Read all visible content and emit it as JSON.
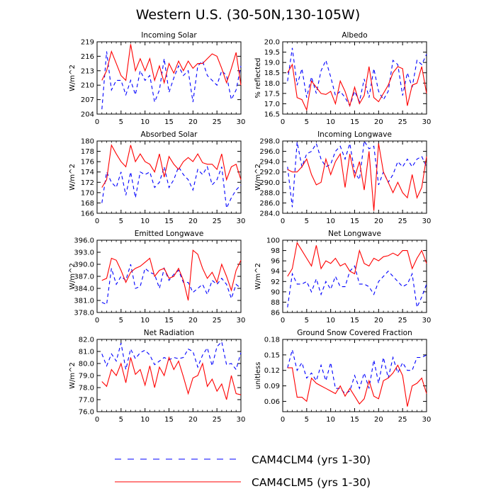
{
  "title": "Western U.S. (30-50N,130-105W)",
  "legend": [
    {
      "label": "CAM4CLM4 (yrs 1-30)",
      "color": "#0000ff",
      "dash": true
    },
    {
      "label": "CAM4CLM5 (yrs 1-30)",
      "color": "#ff0000",
      "dash": false
    }
  ],
  "chart_data": [
    {
      "type": "line",
      "title": "Incoming Solar",
      "ylabel": "W/m^2",
      "ylim": [
        204,
        219
      ],
      "yticks": [
        204,
        207,
        210,
        213,
        216,
        219
      ],
      "xlim": [
        0,
        30
      ],
      "xticks": [
        0,
        5,
        10,
        15,
        20,
        25,
        30
      ],
      "x": [
        1,
        2,
        3,
        4,
        5,
        6,
        7,
        8,
        9,
        10,
        11,
        12,
        13,
        14,
        15,
        16,
        17,
        18,
        19,
        20,
        21,
        22,
        23,
        24,
        25,
        26,
        27,
        28,
        29,
        30
      ],
      "series": [
        {
          "name": "CAM4CLM4 (yrs 1-30)",
          "values": [
            205,
            217,
            209,
            211,
            211,
            208,
            211,
            208,
            213,
            211,
            212,
            206.5,
            209,
            215.5,
            208.5,
            211.5,
            214,
            212,
            213,
            206.5,
            214,
            215,
            212,
            211,
            210,
            213,
            212,
            207,
            209,
            214
          ]
        },
        {
          "name": "CAM4CLM5 (yrs 1-30)",
          "values": [
            211,
            213,
            217,
            214.5,
            212,
            211,
            218.5,
            213,
            215.5,
            213,
            215.5,
            211,
            214,
            210.5,
            214.5,
            212.5,
            215,
            213,
            215,
            213.5,
            214.5,
            214.5,
            215.5,
            216.5,
            216,
            213.5,
            210.5,
            213.5,
            216.8,
            210
          ]
        }
      ]
    },
    {
      "type": "line",
      "title": "Albedo",
      "ylabel": "% reflected",
      "ylim": [
        16.5,
        20.0
      ],
      "yticks": [
        "16.5",
        "17.0",
        "17.5",
        "18.0",
        "18.5",
        "19.0",
        "19.5",
        "20.0"
      ],
      "xlim": [
        0,
        30
      ],
      "xticks": [
        0,
        5,
        10,
        15,
        20,
        25,
        30
      ],
      "x": [
        1,
        2,
        3,
        4,
        5,
        6,
        7,
        8,
        9,
        10,
        11,
        12,
        13,
        14,
        15,
        16,
        17,
        18,
        19,
        20,
        21,
        22,
        23,
        24,
        25,
        26,
        27,
        28,
        29,
        30
      ],
      "series": [
        {
          "name": "CAM4CLM4 (yrs 1-30)",
          "values": [
            18.1,
            19.7,
            17.9,
            18.7,
            17.3,
            18.3,
            17.5,
            18.6,
            19.1,
            18.3,
            17.4,
            17.6,
            17.3,
            16.9,
            17.6,
            17.1,
            18.2,
            17.3,
            18.7,
            17.6,
            17.2,
            17.6,
            19.1,
            18.9,
            17.4,
            18.5,
            17.8,
            19.1,
            18.9,
            19.4
          ]
        },
        {
          "name": "CAM4CLM5 (yrs 1-30)",
          "values": [
            18.5,
            18.9,
            17.3,
            17.2,
            16.7,
            18.1,
            17.8,
            17.5,
            17.45,
            17.6,
            17.0,
            18.1,
            17.6,
            16.9,
            17.8,
            17.0,
            17.4,
            18.8,
            17.3,
            17.1,
            17.5,
            17.9,
            18.5,
            18.8,
            18.7,
            16.9,
            17.9,
            18.0,
            18.8,
            17.5
          ]
        }
      ]
    },
    {
      "type": "line",
      "title": "Absorbed Solar",
      "ylabel": "W/m^2",
      "ylim": [
        166,
        180
      ],
      "yticks": [
        166,
        168,
        170,
        172,
        174,
        176,
        178,
        180
      ],
      "xlim": [
        0,
        30
      ],
      "xticks": [
        0,
        5,
        10,
        15,
        20,
        25,
        30
      ],
      "x": [
        1,
        2,
        3,
        4,
        5,
        6,
        7,
        8,
        9,
        10,
        11,
        12,
        13,
        14,
        15,
        16,
        17,
        18,
        19,
        20,
        21,
        22,
        23,
        24,
        25,
        26,
        27,
        28,
        29,
        30
      ],
      "series": [
        {
          "name": "CAM4CLM4 (yrs 1-30)",
          "values": [
            168,
            174,
            172,
            171,
            174,
            169.5,
            174,
            169,
            174,
            173.5,
            174,
            171,
            172,
            175,
            171,
            172.5,
            175,
            173.5,
            172.5,
            170.5,
            174.5,
            173.5,
            175,
            171.5,
            172.5,
            175,
            167,
            169,
            170.5,
            171.5
          ]
        },
        {
          "name": "CAM4CLM5 (yrs 1-30)",
          "values": [
            171,
            172.5,
            179.2,
            177.5,
            176,
            175,
            179.2,
            176,
            177.5,
            176,
            175.5,
            174,
            177.5,
            173,
            177,
            175.5,
            174.5,
            176,
            176.8,
            176,
            177.5,
            175.8,
            175.5,
            175.5,
            174.5,
            177.5,
            172.5,
            175,
            175.5,
            172.5
          ]
        }
      ]
    },
    {
      "type": "line",
      "title": "Incoming Longwave",
      "ylabel": "W/m^2",
      "ylim": [
        284.0,
        298.0
      ],
      "yticks": [
        "284.0",
        "286.0",
        "288.0",
        "290.0",
        "292.0",
        "294.0",
        "296.0",
        "298.0"
      ],
      "xlim": [
        0,
        30
      ],
      "xticks": [
        0,
        5,
        10,
        15,
        20,
        25,
        30
      ],
      "x": [
        1,
        2,
        3,
        4,
        5,
        6,
        7,
        8,
        9,
        10,
        11,
        12,
        13,
        14,
        15,
        16,
        17,
        18,
        19,
        20,
        21,
        22,
        23,
        24,
        25,
        26,
        27,
        28,
        29,
        30
      ],
      "series": [
        {
          "name": "CAM4CLM4 (yrs 1-30)",
          "values": [
            293,
            285.2,
            297.8,
            293,
            295.5,
            296,
            297.5,
            294.5,
            293,
            293.5,
            296,
            297,
            294.5,
            297.5,
            292,
            290.5,
            298,
            296.5,
            297,
            289.5,
            292,
            290,
            291.5,
            294,
            293,
            294.5,
            293,
            294.5,
            295,
            293
          ]
        },
        {
          "name": "CAM4CLM5 (yrs 1-30)",
          "values": [
            292.5,
            292,
            292,
            293,
            294.5,
            291.5,
            289.5,
            290,
            294.5,
            291.5,
            294,
            295.5,
            289,
            295.5,
            291,
            294,
            288.5,
            296,
            284.5,
            297.5,
            292,
            290,
            288,
            290,
            288,
            287,
            291.5,
            287,
            289,
            295
          ]
        }
      ]
    },
    {
      "type": "line",
      "title": "Emitted Longwave",
      "ylabel": "W/m^2",
      "ylim": [
        378.0,
        396.0
      ],
      "yticks": [
        "378.0",
        "381.0",
        "384.0",
        "387.0",
        "390.0",
        "393.0",
        "396.0"
      ],
      "xlim": [
        0,
        30
      ],
      "xticks": [
        0,
        5,
        10,
        15,
        20,
        25,
        30
      ],
      "x": [
        1,
        2,
        3,
        4,
        5,
        6,
        7,
        8,
        9,
        10,
        11,
        12,
        13,
        14,
        15,
        16,
        17,
        18,
        19,
        20,
        21,
        22,
        23,
        24,
        25,
        26,
        27,
        28,
        29,
        30
      ],
      "series": [
        {
          "name": "CAM4CLM4 (yrs 1-30)",
          "values": [
            380.5,
            380,
            389,
            385,
            387,
            386,
            390,
            384,
            384.5,
            389,
            388,
            387.5,
            384,
            389,
            386,
            387.5,
            388.5,
            385.5,
            385.5,
            383,
            384,
            385,
            382.5,
            386,
            385,
            386.5,
            385,
            381.5,
            385,
            384
          ]
        },
        {
          "name": "CAM4CLM5 (yrs 1-30)",
          "values": [
            386,
            386.5,
            391.5,
            391,
            388.5,
            385.5,
            388,
            389,
            389.5,
            390.5,
            391.5,
            387,
            388.5,
            389,
            386.5,
            387,
            389,
            386,
            381,
            393.5,
            392.5,
            389,
            386.5,
            388,
            385.5,
            390,
            387,
            383.5,
            388.5,
            391
          ]
        }
      ]
    },
    {
      "type": "line",
      "title": "Net Longwave",
      "ylabel": "W/m^2",
      "ylim": [
        86,
        100
      ],
      "yticks": [
        86,
        88,
        90,
        92,
        94,
        96,
        98,
        100
      ],
      "xlim": [
        0,
        30
      ],
      "xticks": [
        0,
        5,
        10,
        15,
        20,
        25,
        30
      ],
      "x": [
        1,
        2,
        3,
        4,
        5,
        6,
        7,
        8,
        9,
        10,
        11,
        12,
        13,
        14,
        15,
        16,
        17,
        18,
        19,
        20,
        21,
        22,
        23,
        24,
        25,
        26,
        27,
        28,
        29,
        30
      ],
      "series": [
        {
          "name": "CAM4CLM4 (yrs 1-30)",
          "values": [
            87,
            93.5,
            91.5,
            91.5,
            92,
            90,
            92.5,
            89.5,
            92,
            90.5,
            93,
            91,
            91,
            94,
            95,
            91.5,
            91.5,
            91,
            89.5,
            92,
            93,
            94,
            93,
            92,
            91,
            91.5,
            93.5,
            87,
            89,
            91.5
          ]
        },
        {
          "name": "CAM4CLM5 (yrs 1-30)",
          "values": [
            93,
            94.5,
            99.5,
            98,
            96.5,
            95,
            99,
            94.5,
            96,
            95.5,
            96.5,
            95,
            95.5,
            94,
            93.5,
            98,
            95.5,
            95,
            96.5,
            96,
            96.8,
            97,
            97.5,
            97,
            98,
            98,
            94.5,
            96.5,
            98,
            95.5
          ]
        }
      ]
    },
    {
      "type": "line",
      "title": "Net Radiation",
      "ylabel": "W/m^2",
      "ylim": [
        76.0,
        82.0
      ],
      "yticks": [
        "76.0",
        "77.0",
        "78.0",
        "79.0",
        "80.0",
        "81.0",
        "82.0"
      ],
      "xlim": [
        0,
        30
      ],
      "xticks": [
        0,
        5,
        10,
        15,
        20,
        25,
        30
      ],
      "x": [
        1,
        2,
        3,
        4,
        5,
        6,
        7,
        8,
        9,
        10,
        11,
        12,
        13,
        14,
        15,
        16,
        17,
        18,
        19,
        20,
        21,
        22,
        23,
        24,
        25,
        26,
        27,
        28,
        29,
        30
      ],
      "series": [
        {
          "name": "CAM4CLM4 (yrs 1-30)",
          "values": [
            80.8,
            79.8,
            80.8,
            80.2,
            81.7,
            79.5,
            81.2,
            80.4,
            80.9,
            81.1,
            80.7,
            79.9,
            80.2,
            80.5,
            80.3,
            80.5,
            80.4,
            80.5,
            81.2,
            81.0,
            79.7,
            80.7,
            81.3,
            79.8,
            81.4,
            81.8,
            79.9,
            80.0,
            79.5,
            80.9
          ]
        },
        {
          "name": "CAM4CLM5 (yrs 1-30)",
          "values": [
            78.5,
            78.1,
            79.5,
            79.0,
            80.0,
            78.4,
            80.5,
            79.1,
            79.5,
            78.2,
            79.8,
            78.0,
            79.7,
            79.0,
            80.5,
            79.5,
            80.2,
            78.9,
            77.5,
            78.8,
            79.0,
            80.0,
            78.1,
            78.7,
            77.7,
            78.3,
            77.0,
            79.0,
            77.5,
            77.4
          ]
        }
      ]
    },
    {
      "type": "line",
      "title": "Ground Snow Covered Fraction",
      "ylabel": "unitless",
      "ylim": [
        0.04,
        0.18
      ],
      "yticks": [
        "0.06",
        "0.09",
        "0.12",
        "0.15",
        "0.18"
      ],
      "xlim": [
        0,
        30
      ],
      "xticks": [
        0,
        5,
        10,
        15,
        20,
        25,
        30
      ],
      "x": [
        1,
        2,
        3,
        4,
        5,
        6,
        7,
        8,
        9,
        10,
        11,
        12,
        13,
        14,
        15,
        16,
        17,
        18,
        19,
        20,
        21,
        22,
        23,
        24,
        25,
        26,
        27,
        28,
        29,
        30
      ],
      "series": [
        {
          "name": "CAM4CLM4 (yrs 1-30)",
          "values": [
            0.125,
            0.16,
            0.12,
            0.135,
            0.105,
            0.115,
            0.1,
            0.13,
            0.1,
            0.135,
            0.085,
            0.085,
            0.075,
            0.08,
            0.11,
            0.085,
            0.115,
            0.085,
            0.14,
            0.095,
            0.145,
            0.105,
            0.145,
            0.115,
            0.135,
            0.12,
            0.12,
            0.145,
            0.145,
            0.15
          ]
        },
        {
          "name": "CAM4CLM5 (yrs 1-30)",
          "values": [
            0.125,
            0.125,
            0.068,
            0.068,
            0.06,
            0.105,
            0.095,
            0.09,
            0.085,
            0.08,
            0.075,
            0.09,
            0.07,
            0.085,
            0.07,
            0.055,
            0.065,
            0.1,
            0.07,
            0.065,
            0.1,
            0.105,
            0.115,
            0.13,
            0.11,
            0.05,
            0.09,
            0.095,
            0.105,
            0.075
          ]
        }
      ]
    }
  ]
}
